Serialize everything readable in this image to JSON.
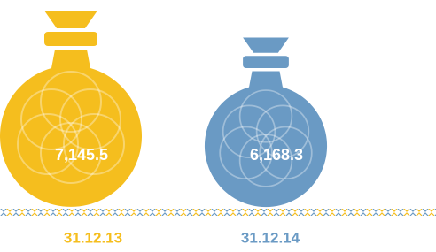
{
  "chart_data": {
    "type": "pictogram",
    "categories": [
      "31.12.13",
      "31.12.14"
    ],
    "values": [
      7145.5,
      6168.3
    ],
    "value_labels": [
      "7,145.5",
      "6,168.3"
    ],
    "colors": [
      "#f5be1e",
      "#6a9ac4"
    ]
  }
}
